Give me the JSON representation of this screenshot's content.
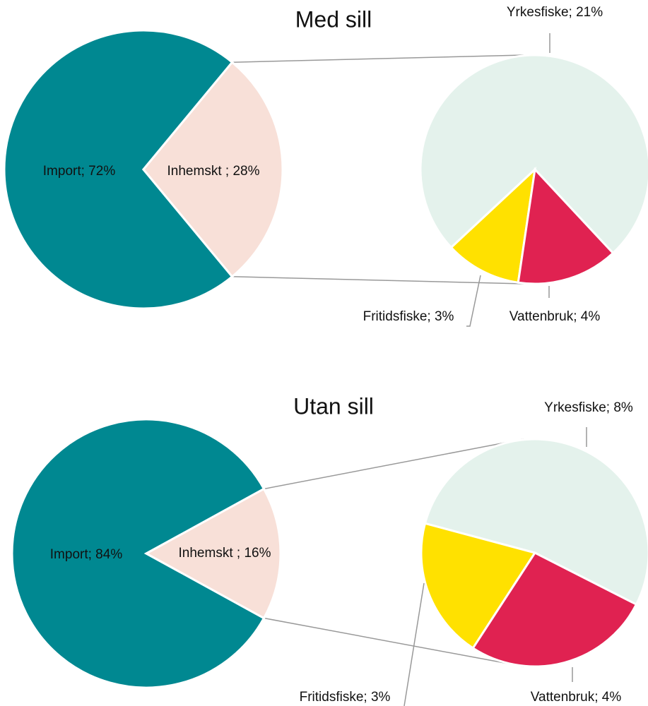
{
  "chart_data": [
    {
      "type": "pie",
      "title": "Med sill",
      "values": [
        72,
        28
      ],
      "value_labels": [
        "Import; 72%",
        "Inhemskt ; 28%"
      ],
      "colors": [
        "#008891",
        "#f8e0d8"
      ],
      "secondary": {
        "values": [
          21,
          3,
          4
        ],
        "value_labels": [
          "Yrkesfiske; 21%",
          "Fritidsfiske; 3%",
          "Vattenbruk; 4%"
        ],
        "colors": [
          "#e4f2ec",
          "#ffe100",
          "#e02251"
        ]
      }
    },
    {
      "type": "pie",
      "title": "Utan sill",
      "values": [
        84,
        16
      ],
      "value_labels": [
        "Import; 84%",
        "Inhemskt ; 16%"
      ],
      "colors": [
        "#008891",
        "#f8e0d8"
      ],
      "secondary": {
        "values": [
          8,
          3,
          4
        ],
        "value_labels": [
          "Yrkesfiske; 8%",
          "Fritidsfiske; 3%",
          "Vattenbruk; 4%"
        ],
        "colors": [
          "#e4f2ec",
          "#ffe100",
          "#e02251"
        ]
      }
    }
  ]
}
